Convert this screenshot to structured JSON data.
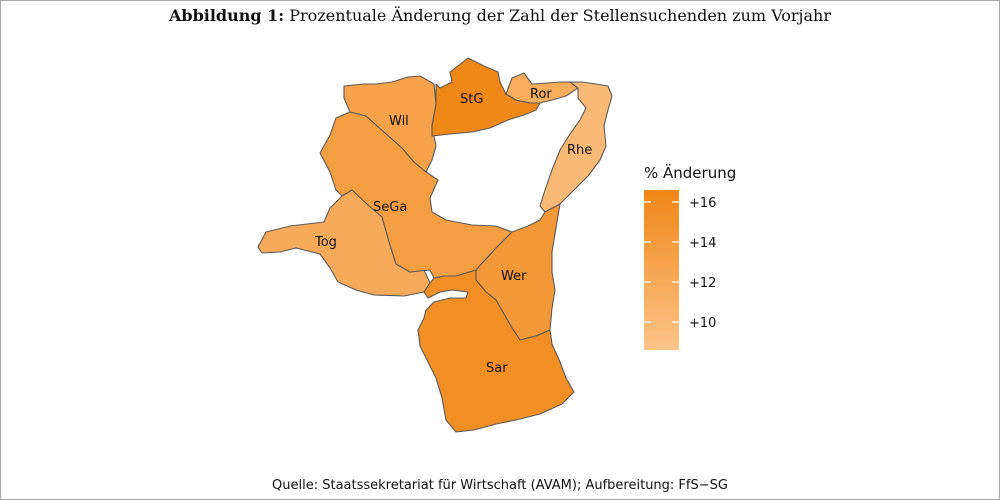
{
  "figure": {
    "label": "Abbildung 1:",
    "title": "Prozentuale Änderung der Zahl der Stellensuchenden zum Vorjahr"
  },
  "source": "Quelle: Staatssekretariat für Wirtschaft (AVAM); Aufbereitung: FfS−SG",
  "legend": {
    "title": "% Änderung",
    "ticks": [
      {
        "value": 16,
        "label": "+16"
      },
      {
        "value": 14,
        "label": "+14"
      },
      {
        "value": 12,
        "label": "+12"
      },
      {
        "value": 10,
        "label": "+10"
      }
    ],
    "min": 8.6,
    "max": 16.6,
    "color_low": "#fdc48a",
    "color_high": "#ef8716"
  },
  "chart_data": {
    "type": "choropleth",
    "regions": [
      {
        "id": "StG",
        "label": "StG",
        "value": 16.5
      },
      {
        "id": "Ror",
        "label": "Ror",
        "value": 11.8
      },
      {
        "id": "Rhe",
        "label": "Rhe",
        "value": 10.0
      },
      {
        "id": "Wil",
        "label": "Wil",
        "value": 13.0
      },
      {
        "id": "SeGa",
        "label": "SeGa",
        "value": 13.6
      },
      {
        "id": "Tog",
        "label": "Tog",
        "value": 12.0
      },
      {
        "id": "Wer",
        "label": "Wer",
        "value": 14.4
      },
      {
        "id": "Sar",
        "label": "Sar",
        "value": 15.6
      }
    ]
  }
}
